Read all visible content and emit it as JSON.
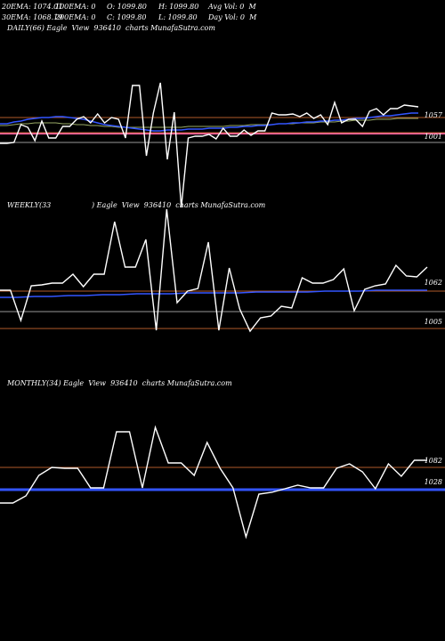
{
  "header": {
    "line1": [
      "20EMA: 1074.01",
      "100EMA: 0",
      "O: 1099.80",
      "H: 1099.80",
      "Avg Vol: 0  M"
    ],
    "line2": [
      "30EMA: 1068.19",
      "200EMA: 0",
      "C: 1099.80",
      "L: 1099.80",
      "Day Vol: 0  M"
    ]
  },
  "panels": {
    "daily": {
      "title": "DAILY(66) Eagle  View  936410  charts MunafaSutra.com"
    },
    "weekly": {
      "title_left": "WEEKLY(33",
      "title_right": ") Eagle  View  936410  charts MunafaSutra.com"
    },
    "monthly": {
      "title": "MONTHLY(34) Eagle  View  936410  charts MunafaSutra.com"
    }
  },
  "colors": {
    "background": "#000000",
    "price": "#ffffff",
    "ema_blue": "#3355ff",
    "ref_brown": "#b05a2a",
    "ref_gray": "#999999",
    "ref_pink": "#ff66aa",
    "ema_green": "#99aa66"
  },
  "chart_data": [
    {
      "type": "line",
      "name": "daily",
      "y_labels": [
        "1057",
        "1001"
      ],
      "price": [
        161,
        161,
        160,
        140,
        143,
        158,
        136,
        155,
        155,
        142,
        142,
        134,
        131,
        138,
        128,
        138,
        132,
        134,
        155,
        96,
        96,
        175,
        127,
        93,
        179,
        126,
        233,
        155,
        153,
        153,
        151,
        156,
        144,
        153,
        153,
        146,
        152,
        147,
        147,
        127,
        129,
        129,
        128,
        131,
        127,
        133,
        129,
        140,
        115,
        138,
        134,
        134,
        142,
        125,
        122,
        129,
        122,
        122,
        118,
        119,
        120
      ],
      "ema_fast": [
        139,
        139,
        137,
        136,
        134,
        133,
        132,
        132,
        131,
        131,
        132,
        133,
        134,
        136,
        138,
        140,
        141,
        142,
        143,
        144,
        145,
        146,
        147,
        147,
        146,
        146,
        146,
        145,
        145,
        145,
        144,
        144,
        144,
        143,
        143,
        142,
        142,
        141,
        141,
        140,
        139,
        139,
        138,
        138,
        137,
        137,
        136,
        136,
        135,
        135,
        134,
        133,
        133,
        132,
        131,
        130,
        130,
        129,
        128,
        127,
        127
      ],
      "ema_slow": [
        141,
        141,
        140,
        139,
        139,
        138,
        138,
        138,
        138,
        139,
        139,
        140,
        140,
        141,
        141,
        142,
        142,
        143,
        143,
        143,
        143,
        143,
        143,
        143,
        143,
        143,
        143,
        142,
        142,
        142,
        142,
        142,
        142,
        141,
        141,
        141,
        140,
        140,
        140,
        140,
        139,
        139,
        139,
        138,
        138,
        138,
        137,
        137,
        137,
        136,
        136,
        135,
        135,
        135,
        134,
        134,
        134,
        133,
        133,
        133,
        133
      ],
      "ref_lines": [
        {
          "value": 132,
          "color": "brown"
        },
        {
          "value": 150,
          "color": "pink"
        },
        {
          "value": 149,
          "color": "brown"
        },
        {
          "value": 160,
          "color": "gray"
        }
      ]
    },
    {
      "type": "line",
      "name": "weekly",
      "y_labels": [
        "1062",
        "1005"
      ],
      "price": [
        326,
        326,
        360,
        321,
        320,
        318,
        318,
        308,
        322,
        308,
        308,
        249,
        300,
        300,
        269,
        371,
        235,
        340,
        327,
        324,
        272,
        371,
        301,
        347,
        372,
        357,
        355,
        344,
        346,
        312,
        318,
        318,
        314,
        302,
        349,
        325,
        321,
        319,
        298,
        310,
        311,
        300
      ],
      "ema": [
        334,
        334,
        333,
        333,
        332,
        332,
        331,
        331,
        330,
        330,
        330,
        329,
        329,
        329,
        329,
        328,
        328,
        328,
        328,
        327,
        327,
        327,
        326,
        326,
        326,
        326
      ],
      "ref_lines": [
        {
          "value": 327,
          "color": "brown"
        },
        {
          "value": 350,
          "color": "gray"
        },
        {
          "value": 369,
          "color": "brown"
        }
      ]
    },
    {
      "type": "line",
      "name": "monthly",
      "y_labels": [
        "1082",
        "1028"
      ],
      "price": [
        565,
        565,
        557,
        534,
        525,
        526,
        526,
        548,
        548,
        485,
        485,
        548,
        480,
        520,
        520,
        534,
        497,
        526,
        548,
        603,
        555,
        553,
        549,
        545,
        548,
        548,
        526,
        521,
        530,
        549,
        521,
        535,
        517,
        517
      ],
      "ema": [
        550,
        550,
        550,
        550,
        550,
        550,
        550,
        550,
        550,
        550,
        550,
        550,
        550,
        550,
        550,
        550,
        550,
        550,
        550,
        550,
        550,
        550,
        550,
        550,
        550,
        550
      ],
      "ref_lines": [
        {
          "value": 525,
          "color": "brown"
        },
        {
          "value": 550,
          "color": "blue"
        }
      ]
    }
  ]
}
